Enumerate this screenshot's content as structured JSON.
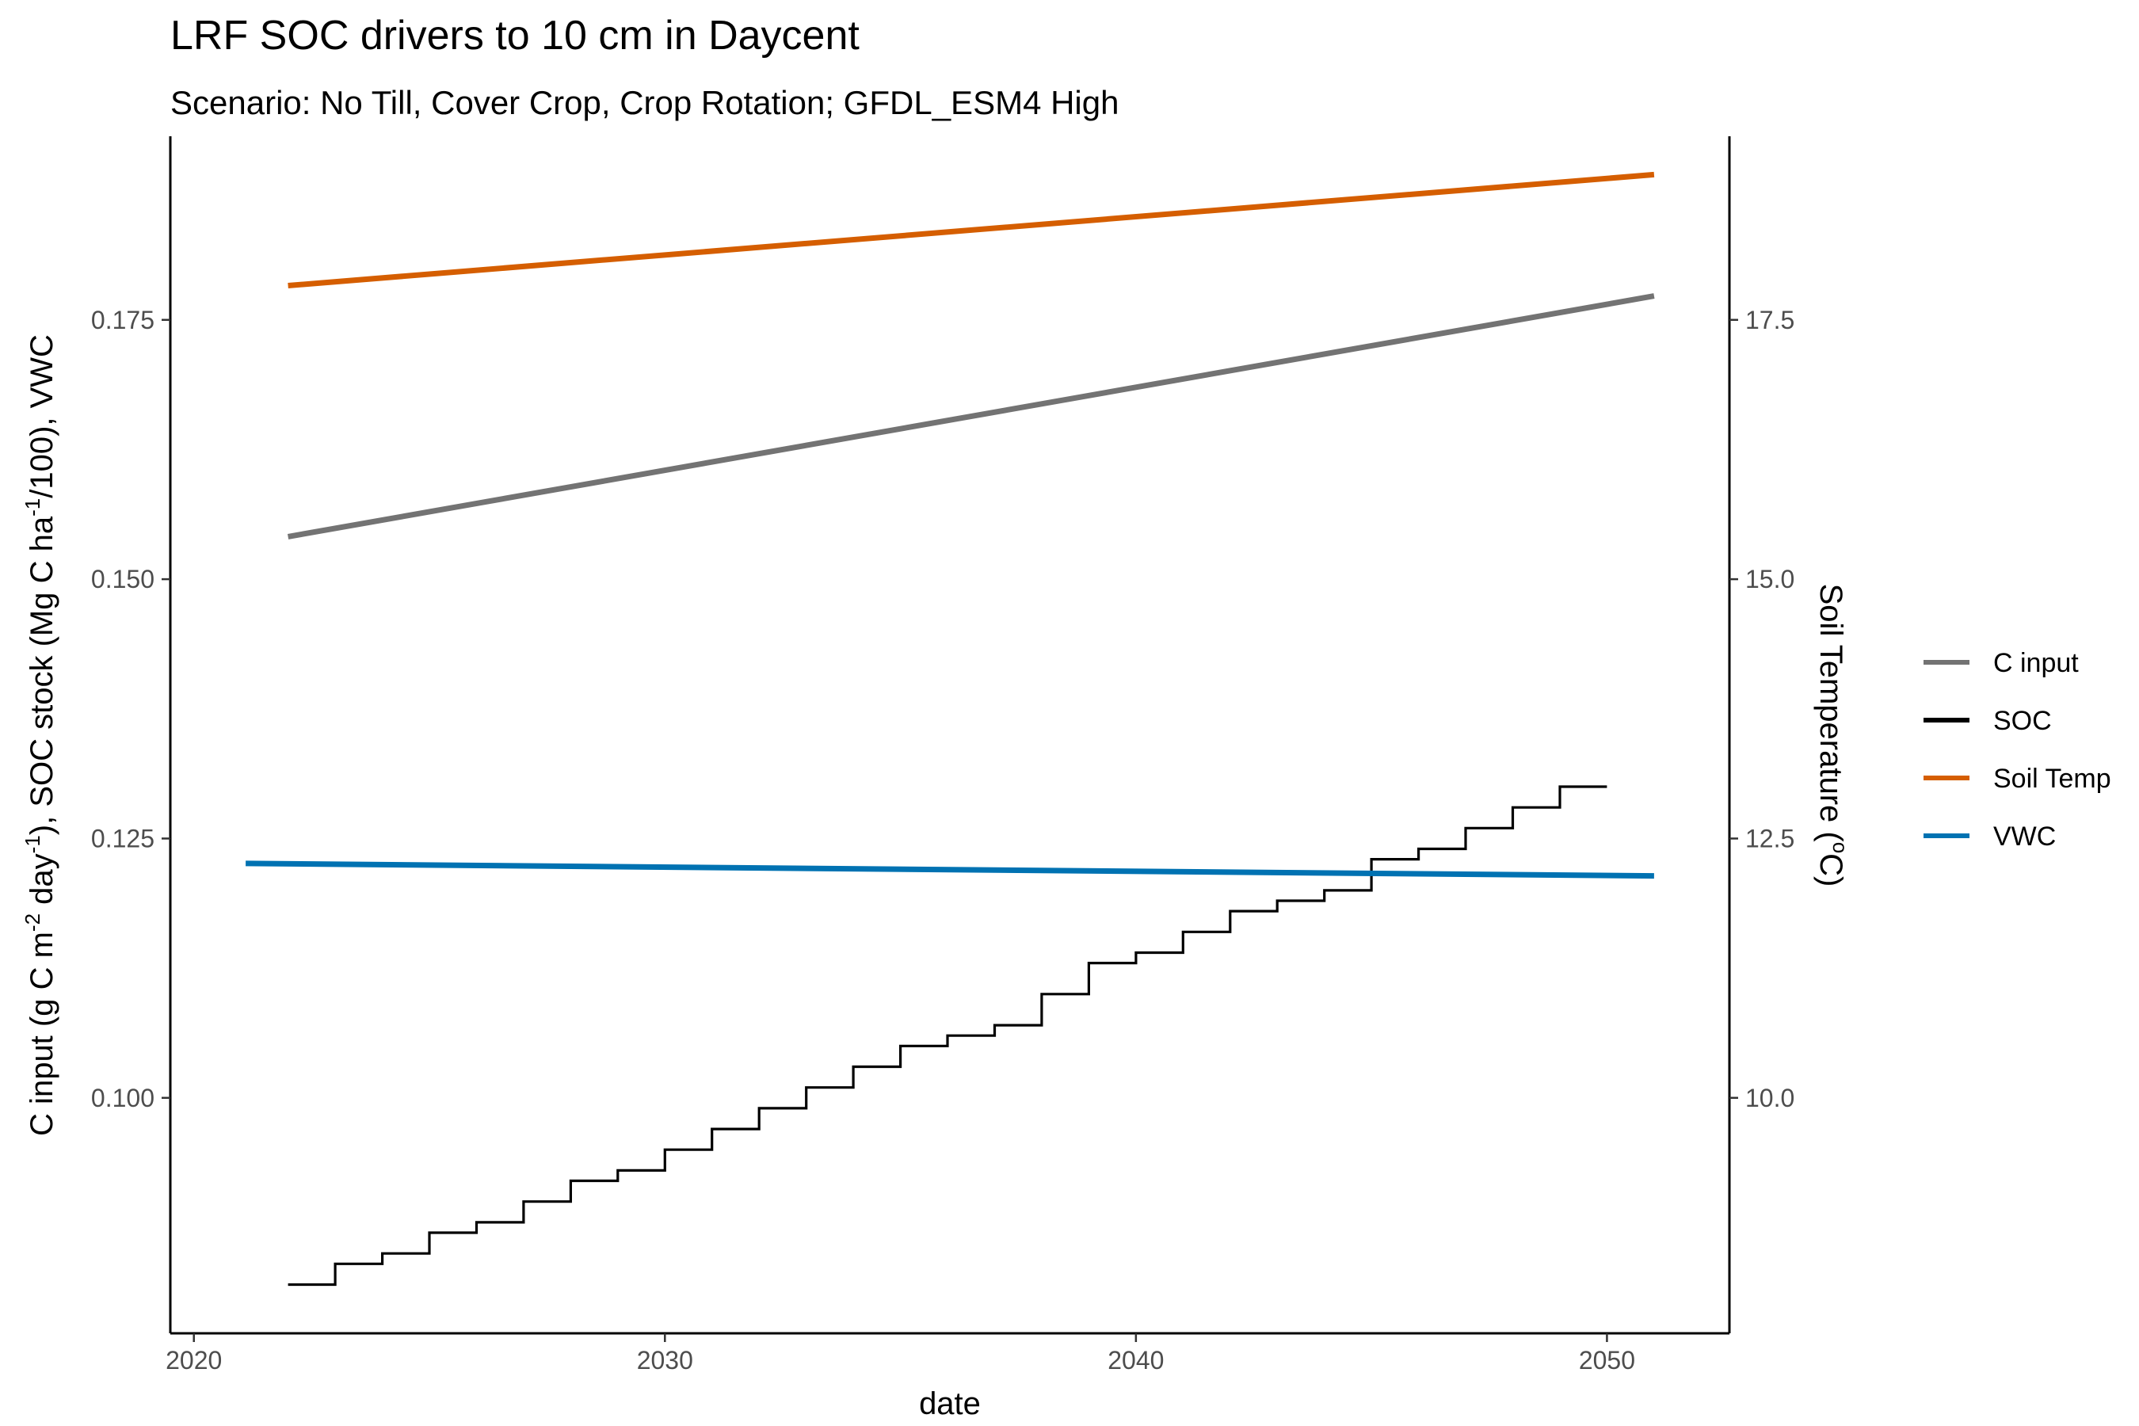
{
  "chart_data": {
    "type": "line",
    "title": "LRF SOC drivers to 10 cm in Daycent",
    "subtitle": "Scenario: No Till, Cover Crop, Crop Rotation; GFDL_ESM4 High",
    "xlabel": "date",
    "ylabel": "C input (g C m-2 day-1), SOC stock (Mg C ha-1/100), VWC",
    "ylabel_parts": {
      "p1": "C input (g C m",
      "s1": "-2",
      "p2": " day",
      "s2": "-1",
      "p3": "), SOC stock (Mg C ha",
      "s3": "-1",
      "p4": "/100), VWC"
    },
    "y2label": "Soil Temperature (oC)",
    "y2label_parts": {
      "p1": "Soil Temperature (",
      "s1": "o",
      "p2": "C)"
    },
    "xlim": [
      2019.5,
      2052.6
    ],
    "ylim": [
      0.0773,
      0.1927
    ],
    "y2lim": [
      7.73,
      19.27
    ],
    "x_ticks": [
      2020,
      2030,
      2040,
      2050
    ],
    "x_tick_labels": [
      "2020",
      "2030",
      "2040",
      "2050"
    ],
    "y_ticks": [
      0.1,
      0.125,
      0.15,
      0.175
    ],
    "y_tick_labels": [
      "0.100",
      "0.125",
      "0.150",
      "0.175"
    ],
    "y2_ticks": [
      10.0,
      12.5,
      15.0,
      17.5
    ],
    "y2_tick_labels": [
      "10.0",
      "12.5",
      "15.0",
      "17.5"
    ],
    "grid": false,
    "legend_position": "right",
    "legend": [
      {
        "label": "C input",
        "color": "#737373"
      },
      {
        "label": "SOC",
        "color": "#000000"
      },
      {
        "label": "Soil Temp",
        "color": "#d55e00"
      },
      {
        "label": "VWC",
        "color": "#0072b2"
      }
    ],
    "series": [
      {
        "name": "C input",
        "axis": "left",
        "style": "line",
        "color": "#737373",
        "x": [
          2022,
          2051
        ],
        "y": [
          0.1541,
          0.1773
        ]
      },
      {
        "name": "SOC",
        "axis": "left",
        "style": "step",
        "color": "#000000",
        "x": [
          2022,
          2023,
          2024,
          2025,
          2026,
          2027,
          2028,
          2029,
          2030,
          2031,
          2032,
          2033,
          2034,
          2035,
          2036,
          2037,
          2038,
          2039,
          2040,
          2041,
          2042,
          2043,
          2044,
          2045,
          2046,
          2047,
          2048,
          2049,
          2050
        ],
        "y": [
          0.082,
          0.084,
          0.085,
          0.087,
          0.088,
          0.09,
          0.092,
          0.093,
          0.095,
          0.097,
          0.099,
          0.101,
          0.103,
          0.105,
          0.106,
          0.107,
          0.11,
          0.113,
          0.114,
          0.116,
          0.118,
          0.119,
          0.12,
          0.123,
          0.124,
          0.126,
          0.128,
          0.13,
          0.13
        ]
      },
      {
        "name": "Soil Temp",
        "axis": "right",
        "style": "line",
        "color": "#d55e00",
        "x": [
          2022,
          2051
        ],
        "y": [
          17.83,
          18.9
        ]
      },
      {
        "name": "VWC",
        "axis": "left",
        "style": "line",
        "color": "#0072b2",
        "x": [
          2021.1,
          2051
        ],
        "y": [
          0.1226,
          0.1214
        ]
      }
    ]
  }
}
